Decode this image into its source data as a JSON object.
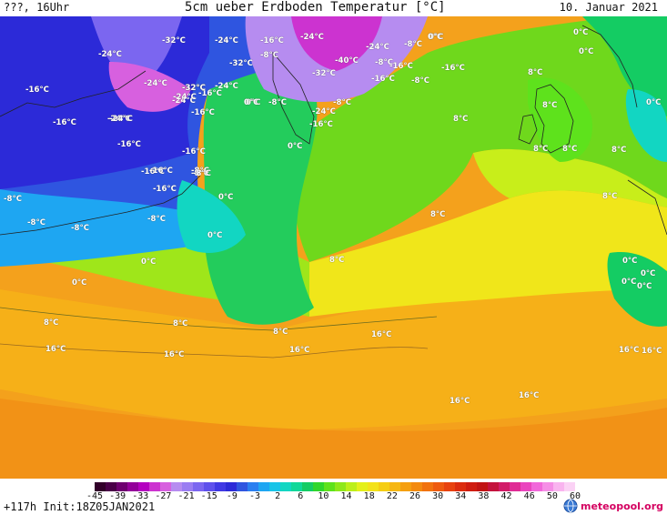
{
  "header": {
    "left": "???, 16Uhr",
    "title": "5cm ueber Erdboden Temperatur [°C]",
    "date": "10. Januar 2021"
  },
  "map": {
    "labels": [
      "-24°C",
      "-32°C",
      "-24°C",
      "-16°C",
      "-24°C",
      "-8°C",
      "-32°C",
      "-16°C",
      "-24°C",
      "-32°C",
      "-40°C",
      "-8°C",
      "-24°C",
      "-16°C",
      "-32°C",
      "-24°C",
      "-8°C",
      "-16°C",
      "-16°C",
      "0°C",
      "-8°C",
      "-16°C",
      "-8°C",
      "-16°C",
      "-24°C",
      "-32°C",
      "-24°C",
      "-24°C",
      "-16°C",
      "0°C",
      "-8°C",
      "-8°C",
      "-24°C",
      "-16°C",
      "-16°C",
      "-24°C",
      "-16°C",
      "0°C",
      "-16°C",
      "-8°C",
      "-16°C",
      "-16°C",
      "-8°C",
      "-8°C",
      "-8°C",
      "-8°C",
      "0°C",
      "-8°C",
      "0°C",
      "0°C",
      "0°C",
      "0°C",
      "8°C",
      "8°C",
      "8°C",
      "8°C",
      "0°C",
      "0°C",
      "0°C",
      "8°C",
      "8°C",
      "8°C",
      "8°C",
      "0°C",
      "8°C",
      "8°C",
      "0°C",
      "0°C",
      "8°C",
      "16°C",
      "16°C",
      "16°C",
      "16°C",
      "16°C",
      "16°C",
      "16°C",
      "8°C",
      "16°C",
      "0°C",
      "0°C"
    ]
  },
  "colorbar": {
    "ticks": [
      "-45",
      "-39",
      "-33",
      "-27",
      "-21",
      "-15",
      "-9",
      "-3",
      "2",
      "6",
      "10",
      "14",
      "18",
      "22",
      "26",
      "30",
      "34",
      "38",
      "42",
      "46",
      "50",
      "60"
    ],
    "colors": [
      "#32002a",
      "#4a0048",
      "#6e0070",
      "#93009a",
      "#b400c0",
      "#cc33d0",
      "#d760df",
      "#b68cf0",
      "#9a7df2",
      "#7b66f0",
      "#5e50ec",
      "#4038e4",
      "#2c2ad8",
      "#2f55e0",
      "#2a7ff0",
      "#1ea6f2",
      "#17c4e8",
      "#12d6c2",
      "#10d899",
      "#14cc63",
      "#2fd62c",
      "#5ee21c",
      "#8ee81a",
      "#bcef19",
      "#e4f01a",
      "#f3e21a",
      "#f5cd13",
      "#f6b713",
      "#f59f10",
      "#f38a0f",
      "#f1720e",
      "#ee5a0e",
      "#e8420e",
      "#dc2c0e",
      "#cf1c10",
      "#c11313",
      "#c4123c",
      "#d21b68",
      "#e02b95",
      "#ea45be",
      "#f168da",
      "#f58ee6",
      "#f9b4ef",
      "#fbd2f5"
    ]
  },
  "footer": {
    "run": "+117h  Init:18Z05JAN2021",
    "logo": "meteopool.org"
  }
}
